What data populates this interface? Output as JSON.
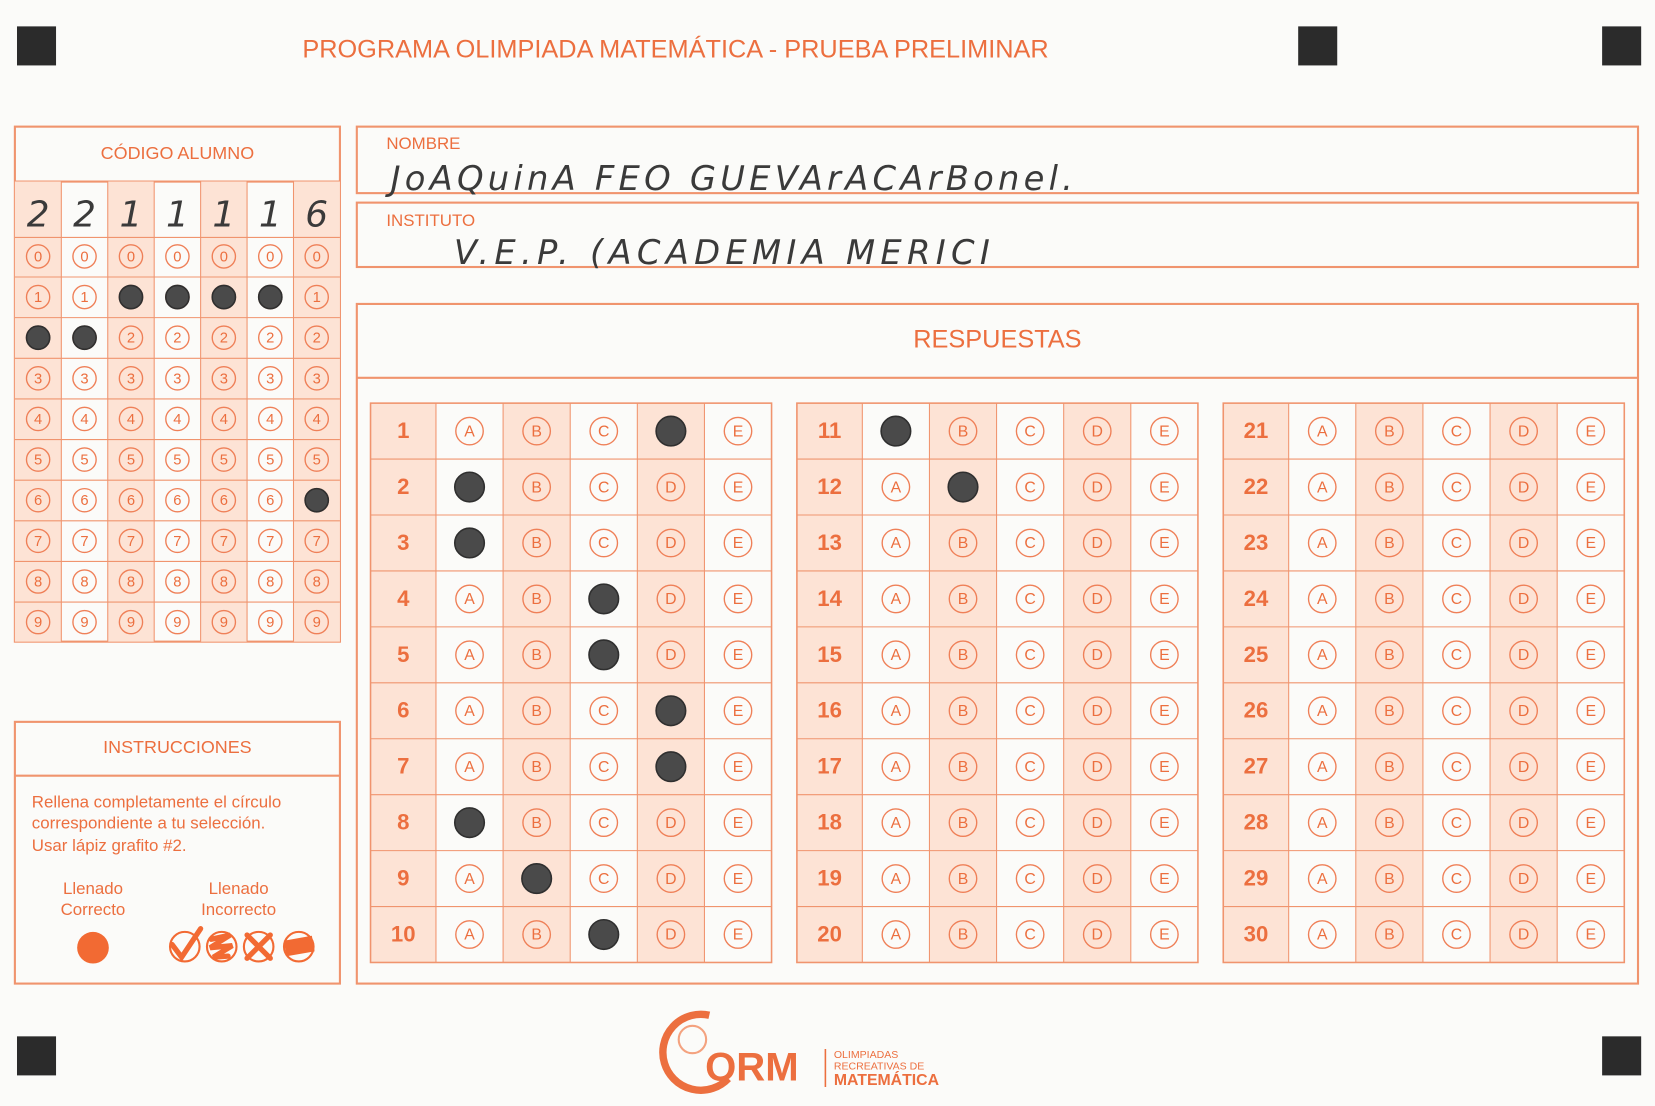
{
  "header": {
    "title": "PROGRAMA OLIMPIADA MATEMÁTICA  - PRUEBA PRELIMINAR"
  },
  "student_code": {
    "title": "CÓDIGO ALUMNO",
    "bubble_digits": [
      "0",
      "1",
      "2",
      "3",
      "4",
      "5",
      "6",
      "7",
      "8",
      "9"
    ],
    "columns": [
      {
        "written": "2",
        "filled": 2
      },
      {
        "written": "2",
        "filled": 2
      },
      {
        "written": "1",
        "filled": 1
      },
      {
        "written": "1",
        "filled": 1
      },
      {
        "written": "1",
        "filled": 1
      },
      {
        "written": "1",
        "filled": 1
      },
      {
        "written": "6",
        "filled": 6
      }
    ]
  },
  "name": {
    "label": "NOMBRE",
    "value": "JoAQuinA FEO GUEVArACArBonel."
  },
  "institute": {
    "label": "INSTITUTO",
    "value": "V.E.P. (ACADEMIA MERICI"
  },
  "instructions": {
    "title": "INSTRUCCIONES",
    "lines": [
      "Rellena completamente el círculo",
      "correspondiente a tu selección.",
      "Usar lápiz grafito #2."
    ],
    "correct_label": [
      "Llenado",
      "Correcto"
    ],
    "incorrect_label": [
      "Llenado",
      "Incorrecto"
    ]
  },
  "answers": {
    "title": "RESPUESTAS",
    "options": [
      "A",
      "B",
      "C",
      "D",
      "E"
    ],
    "questions": [
      {
        "number": 1,
        "marked": 3
      },
      {
        "number": 2,
        "marked": 0
      },
      {
        "number": 3,
        "marked": 0
      },
      {
        "number": 4,
        "marked": 2
      },
      {
        "number": 5,
        "marked": 2
      },
      {
        "number": 6,
        "marked": 3
      },
      {
        "number": 7,
        "marked": 3
      },
      {
        "number": 8,
        "marked": 0
      },
      {
        "number": 9,
        "marked": 1
      },
      {
        "number": 10,
        "marked": 2
      },
      {
        "number": 11,
        "marked": 0
      },
      {
        "number": 12,
        "marked": 1
      },
      {
        "number": 13,
        "marked": null
      },
      {
        "number": 14,
        "marked": null
      },
      {
        "number": 15,
        "marked": null
      },
      {
        "number": 16,
        "marked": null
      },
      {
        "number": 17,
        "marked": null
      },
      {
        "number": 18,
        "marked": null
      },
      {
        "number": 19,
        "marked": null
      },
      {
        "number": 20,
        "marked": null
      },
      {
        "number": 21,
        "marked": null
      },
      {
        "number": 22,
        "marked": null
      },
      {
        "number": 23,
        "marked": null
      },
      {
        "number": 24,
        "marked": null
      },
      {
        "number": 25,
        "marked": null
      },
      {
        "number": 26,
        "marked": null
      },
      {
        "number": 27,
        "marked": null
      },
      {
        "number": 28,
        "marked": null
      },
      {
        "number": 29,
        "marked": null
      },
      {
        "number": 30,
        "marked": null
      }
    ]
  },
  "footer": {
    "logo": "ORM",
    "org_lines": [
      "OLIMPIADAS",
      "RECREATIVAS DE",
      "MATEMÁTICA"
    ]
  }
}
